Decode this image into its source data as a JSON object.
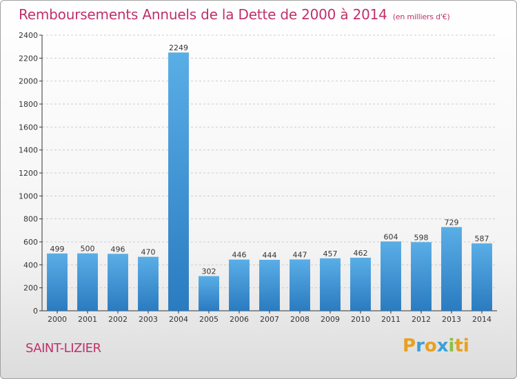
{
  "header": {
    "title": "Remboursements Annuels de la Dette de 2000 à 2014",
    "unit": "(en milliers d'€)"
  },
  "footer": {
    "town": "SAINT-LIZIER",
    "logo_letters": [
      "P",
      "r",
      "o",
      "x",
      "i",
      "ti"
    ]
  },
  "colors": {
    "title": "#c0306a",
    "bar_top": "#5aaee6",
    "bar_bottom": "#2a7bc0",
    "grid": "#cccccc"
  },
  "chart_data": {
    "type": "bar",
    "title": "Remboursements Annuels de la Dette de 2000 à 2014",
    "xlabel": "",
    "ylabel": "",
    "categories": [
      "2000",
      "2001",
      "2002",
      "2003",
      "2004",
      "2005",
      "2006",
      "2007",
      "2008",
      "2009",
      "2010",
      "2011",
      "2012",
      "2013",
      "2014"
    ],
    "values": [
      499,
      500,
      496,
      470,
      2249,
      302,
      446,
      444,
      447,
      457,
      462,
      604,
      598,
      729,
      587
    ],
    "ylim": [
      0,
      2400
    ],
    "yticks": [
      0,
      200,
      400,
      600,
      800,
      1000,
      1200,
      1400,
      1600,
      1800,
      2000,
      2200,
      2400
    ],
    "grid": true,
    "legend": "none"
  }
}
